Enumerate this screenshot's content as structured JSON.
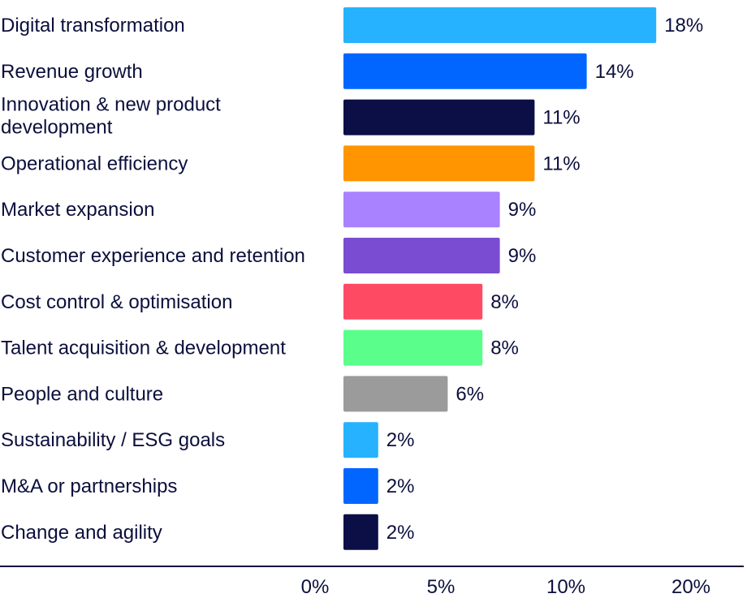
{
  "chart_data": {
    "type": "bar",
    "orientation": "horizontal",
    "title": "",
    "xlabel": "",
    "ylabel": "",
    "categories": [
      [
        "Digital transformation"
      ],
      [
        "Revenue growth"
      ],
      [
        "Innovation & new product",
        "development"
      ],
      [
        "Operational efficiency"
      ],
      [
        "Market expansion"
      ],
      [
        "Customer experience and retention"
      ],
      [
        "Cost control & optimisation"
      ],
      [
        "Talent acquisition & development"
      ],
      [
        "People and culture"
      ],
      [
        "Sustainability / ESG goals"
      ],
      [
        "M&A or partnerships"
      ],
      [
        "Change and agility"
      ]
    ],
    "values": [
      18,
      14,
      11,
      11,
      9,
      9,
      8,
      8,
      6,
      2,
      2,
      2
    ],
    "value_labels": [
      "18%",
      "14%",
      "11%",
      "11%",
      "9%",
      "9%",
      "8%",
      "8%",
      "6%",
      "2%",
      "2%",
      "2%"
    ],
    "colors": [
      "#27b2ff",
      "#0066ff",
      "#0b0f46",
      "#ff9500",
      "#a882ff",
      "#7a4cd1",
      "#ff4a64",
      "#59ff8a",
      "#9b9b9b",
      "#27b2ff",
      "#0066ff",
      "#0b0f46"
    ],
    "xticks": [
      "0%",
      "5%",
      "10%",
      "20%"
    ],
    "xlim": [
      0,
      20
    ],
    "grid": false,
    "legend": "none",
    "axis_color": "#0b0f3c",
    "text_color": "#0b0f3c"
  }
}
